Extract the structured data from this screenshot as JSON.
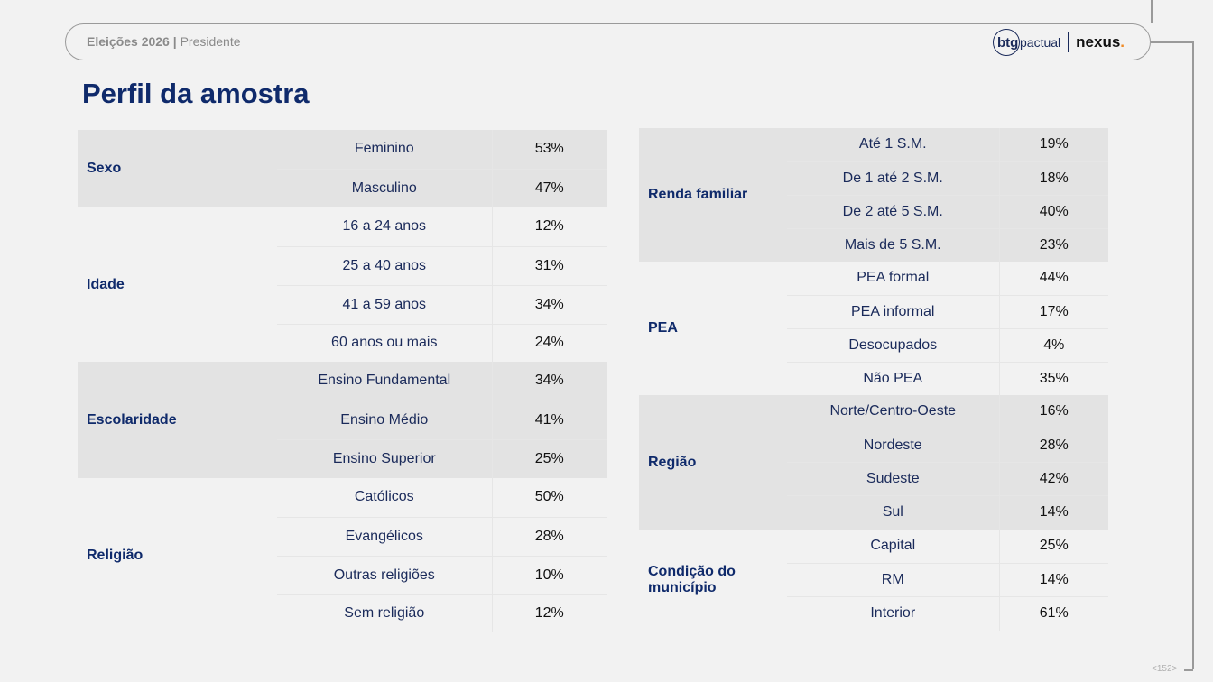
{
  "header": {
    "title_bold": "Eleições 2026",
    "separator": "|",
    "title_rest": "Presidente",
    "logo_btg": "btg",
    "logo_pactual": "pactual",
    "logo_nexus": "nexus",
    "logo_nexus_dot": "."
  },
  "page_title": "Perfil da amostra",
  "page_number": "<152>",
  "colors": {
    "title": "#0f2a6b",
    "shaded_row": "#e3e3e3",
    "plain_row": "#f2f2f2",
    "accent_dot": "#f08a24"
  },
  "left_table": [
    {
      "category": "Sexo",
      "shaded": true,
      "rows": [
        {
          "label": "Feminino",
          "value": "53%"
        },
        {
          "label": "Masculino",
          "value": "47%"
        }
      ]
    },
    {
      "category": "Idade",
      "shaded": false,
      "rows": [
        {
          "label": "16 a 24 anos",
          "value": "12%"
        },
        {
          "label": "25 a 40 anos",
          "value": "31%"
        },
        {
          "label": "41 a 59 anos",
          "value": "34%"
        },
        {
          "label": "60 anos ou mais",
          "value": "24%"
        }
      ]
    },
    {
      "category": "Escolaridade",
      "shaded": true,
      "rows": [
        {
          "label": "Ensino Fundamental",
          "value": "34%"
        },
        {
          "label": "Ensino Médio",
          "value": "41%"
        },
        {
          "label": "Ensino Superior",
          "value": "25%"
        }
      ]
    },
    {
      "category": "Religião",
      "shaded": false,
      "rows": [
        {
          "label": "Católicos",
          "value": "50%"
        },
        {
          "label": "Evangélicos",
          "value": "28%"
        },
        {
          "label": "Outras religiões",
          "value": "10%"
        },
        {
          "label": "Sem religião",
          "value": "12%"
        }
      ]
    }
  ],
  "right_table": [
    {
      "category": "Renda familiar",
      "shaded": true,
      "rows": [
        {
          "label": "Até 1 S.M.",
          "value": "19%"
        },
        {
          "label": "De 1 até 2 S.M.",
          "value": "18%"
        },
        {
          "label": "De 2 até 5 S.M.",
          "value": "40%"
        },
        {
          "label": "Mais de 5 S.M.",
          "value": "23%"
        }
      ]
    },
    {
      "category": "PEA",
      "shaded": false,
      "rows": [
        {
          "label": "PEA formal",
          "value": "44%"
        },
        {
          "label": "PEA informal",
          "value": "17%"
        },
        {
          "label": "Desocupados",
          "value": "4%"
        },
        {
          "label": "Não PEA",
          "value": "35%"
        }
      ]
    },
    {
      "category": "Região",
      "shaded": true,
      "rows": [
        {
          "label": "Norte/Centro-Oeste",
          "value": "16%"
        },
        {
          "label": "Nordeste",
          "value": "28%"
        },
        {
          "label": "Sudeste",
          "value": "42%"
        },
        {
          "label": "Sul",
          "value": "14%"
        }
      ]
    },
    {
      "category": "Condição do município",
      "shaded": false,
      "rows": [
        {
          "label": "Capital",
          "value": "25%"
        },
        {
          "label": "RM",
          "value": "14%"
        },
        {
          "label": "Interior",
          "value": "61%"
        }
      ]
    }
  ]
}
